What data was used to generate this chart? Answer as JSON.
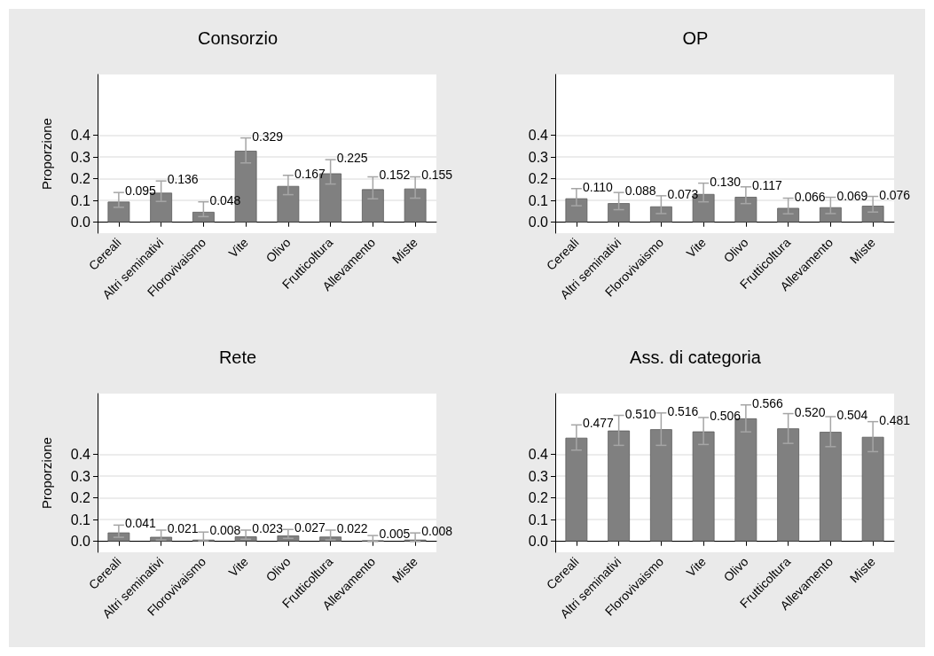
{
  "chart_data": [
    {
      "type": "bar",
      "title": "Consorzio",
      "ylabel": "Proporzione",
      "categories": [
        "Cereali",
        "Altri seminativi",
        "Florovivaismo",
        "Vite",
        "Olivo",
        "Frutticoltura",
        "Allevamento",
        "Miste"
      ],
      "color": "#808080",
      "values": [
        0.095,
        0.136,
        0.048,
        0.329,
        0.167,
        0.225,
        0.152,
        0.155
      ],
      "value_labels": [
        "0.095",
        "0.136",
        "0.048",
        "0.329",
        "0.167",
        "0.225",
        "0.152",
        "0.155"
      ],
      "errors": [
        [
          0.069,
          0.137
        ],
        [
          0.096,
          0.19
        ],
        [
          0.026,
          0.094
        ],
        [
          0.273,
          0.388
        ],
        [
          0.127,
          0.216
        ],
        [
          0.176,
          0.288
        ],
        [
          0.108,
          0.209
        ],
        [
          0.111,
          0.209
        ]
      ],
      "ylim": [
        -0.05,
        0.68
      ],
      "yticks": [
        {
          "value": 0,
          "label": "0.0"
        },
        {
          "value": 0.1,
          "label": "0.1"
        },
        {
          "value": 0.2,
          "label": "0.2"
        },
        {
          "value": 0.3,
          "label": "0.3"
        },
        {
          "value": 0.4,
          "label": "0.4"
        }
      ],
      "grid": "y"
    },
    {
      "type": "bar",
      "title": "OP",
      "categories": [
        "Cereali",
        "Altri seminativi",
        "Florovivaismo",
        "Vite",
        "Olivo",
        "Frutticoltura",
        "Allevamento",
        "Miste"
      ],
      "color": "#808080",
      "values": [
        0.11,
        0.088,
        0.073,
        0.13,
        0.117,
        0.066,
        0.069,
        0.076
      ],
      "value_labels": [
        "0.110",
        "0.088",
        "0.073",
        "0.130",
        "0.117",
        "0.066",
        "0.069",
        "0.076"
      ],
      "errors": [
        [
          0.076,
          0.155
        ],
        [
          0.058,
          0.137
        ],
        [
          0.04,
          0.122
        ],
        [
          0.094,
          0.18
        ],
        [
          0.086,
          0.163
        ],
        [
          0.039,
          0.111
        ],
        [
          0.04,
          0.115
        ],
        [
          0.047,
          0.119
        ]
      ],
      "ylim": [
        -0.05,
        0.68
      ],
      "yticks": [
        {
          "value": 0,
          "label": "0.0"
        },
        {
          "value": 0.1,
          "label": "0.1"
        },
        {
          "value": 0.2,
          "label": "0.2"
        },
        {
          "value": 0.3,
          "label": "0.3"
        },
        {
          "value": 0.4,
          "label": "0.4"
        }
      ],
      "grid": "y"
    },
    {
      "type": "bar",
      "title": "Rete",
      "ylabel": "Proporzione",
      "categories": [
        "Cereali",
        "Altri seminativi",
        "Florovivaismo",
        "Vite",
        "Olivo",
        "Frutticoltura",
        "Allevamento",
        "Miste"
      ],
      "color": "#808080",
      "values": [
        0.041,
        0.021,
        0.008,
        0.023,
        0.027,
        0.022,
        0.005,
        0.008
      ],
      "value_labels": [
        "0.041",
        "0.021",
        "0.008",
        "0.023",
        "0.027",
        "0.022",
        "0.005",
        "0.008"
      ],
      "errors": [
        [
          0.019,
          0.075
        ],
        [
          0.007,
          0.052
        ],
        [
          0.003,
          0.043
        ],
        [
          0.01,
          0.052
        ],
        [
          0.014,
          0.055
        ],
        [
          0.007,
          0.052
        ],
        [
          0.0,
          0.027
        ],
        [
          0.0,
          0.039
        ]
      ],
      "ylim": [
        -0.05,
        0.68
      ],
      "yticks": [
        {
          "value": 0,
          "label": "0.0"
        },
        {
          "value": 0.1,
          "label": "0.1"
        },
        {
          "value": 0.2,
          "label": "0.2"
        },
        {
          "value": 0.3,
          "label": "0.3"
        },
        {
          "value": 0.4,
          "label": "0.4"
        }
      ],
      "grid": "y"
    },
    {
      "type": "bar",
      "title": "Ass. di categoria",
      "categories": [
        "Cereali",
        "Altri seminativi",
        "Florovivaismo",
        "Vite",
        "Olivo",
        "Frutticoltura",
        "Allevamento",
        "Miste"
      ],
      "color": "#808080",
      "values": [
        0.477,
        0.51,
        0.516,
        0.506,
        0.566,
        0.52,
        0.504,
        0.481
      ],
      "value_labels": [
        "0.477",
        "0.510",
        "0.516",
        "0.506",
        "0.566",
        "0.520",
        "0.504",
        "0.481"
      ],
      "errors": [
        [
          0.42,
          0.536
        ],
        [
          0.442,
          0.58
        ],
        [
          0.442,
          0.591
        ],
        [
          0.446,
          0.57
        ],
        [
          0.504,
          0.628
        ],
        [
          0.451,
          0.588
        ],
        [
          0.436,
          0.574
        ],
        [
          0.413,
          0.551
        ]
      ],
      "ylim": [
        -0.05,
        0.68
      ],
      "yticks": [
        {
          "value": 0,
          "label": "0.0"
        },
        {
          "value": 0.1,
          "label": "0.1"
        },
        {
          "value": 0.2,
          "label": "0.2"
        },
        {
          "value": 0.3,
          "label": "0.3"
        },
        {
          "value": 0.4,
          "label": "0.4"
        }
      ],
      "grid": "y"
    }
  ]
}
